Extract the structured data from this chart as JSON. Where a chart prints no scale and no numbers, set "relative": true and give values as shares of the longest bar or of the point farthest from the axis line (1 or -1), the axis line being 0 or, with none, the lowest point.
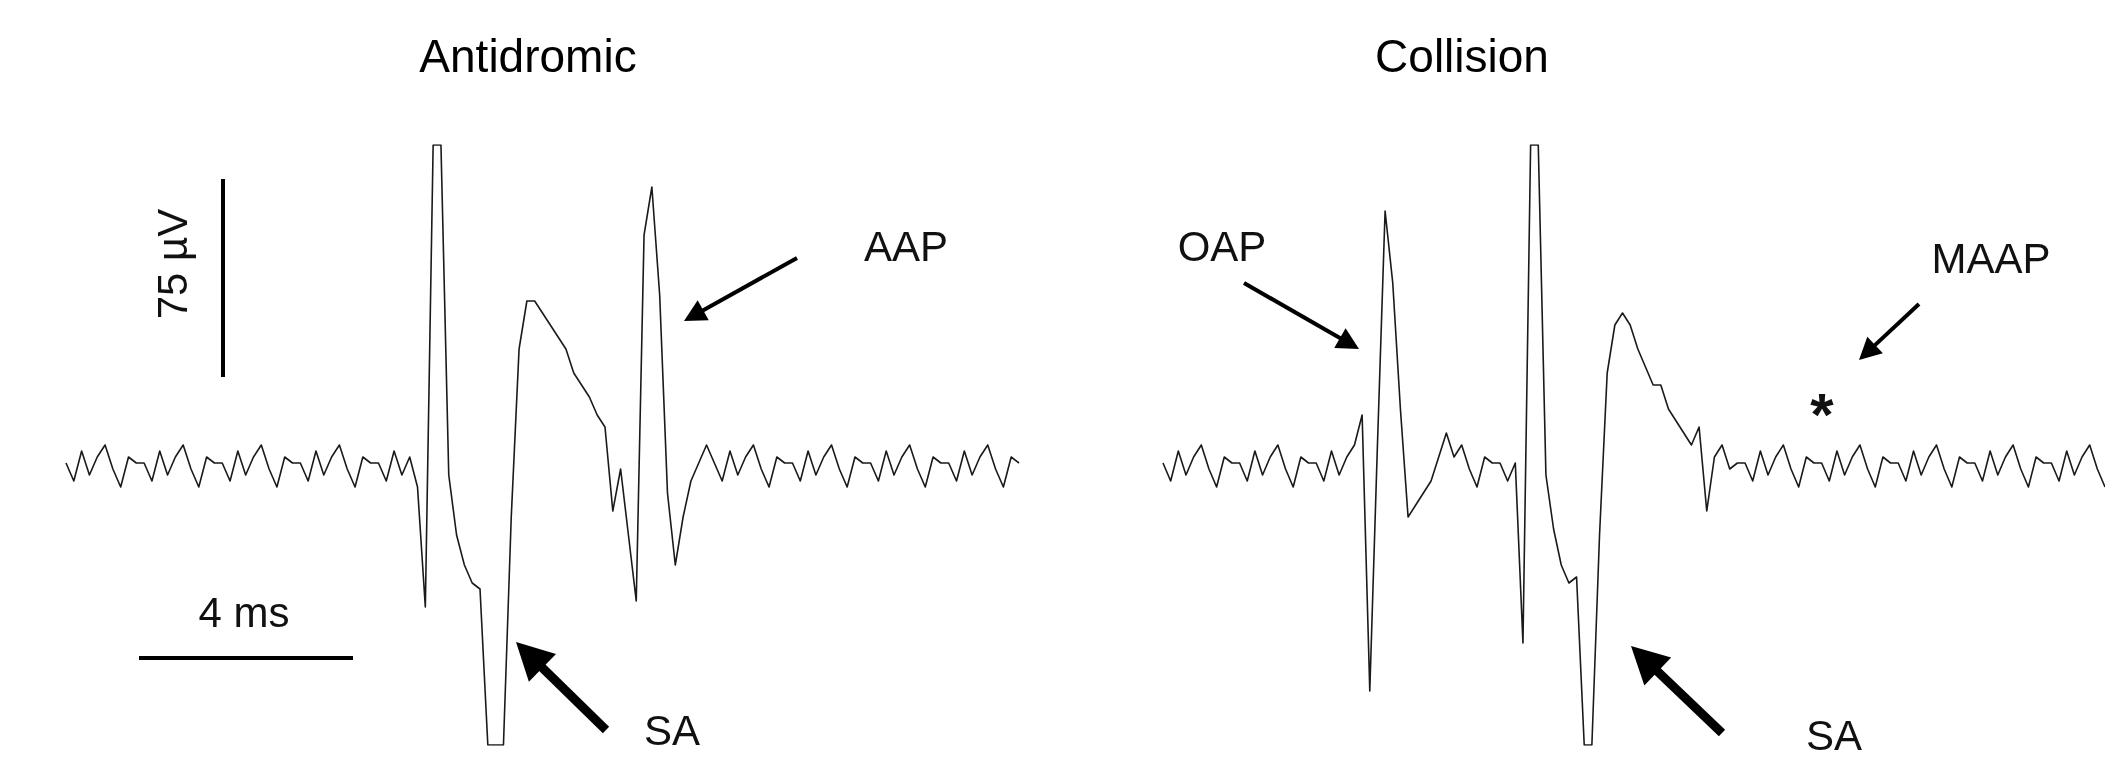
{
  "chart_data": [
    {
      "type": "line",
      "title": "Antidromic",
      "relative": true,
      "annotations": [
        "75 µV",
        "4 ms",
        "AAP",
        "SA"
      ],
      "categories": [
        null,
        null,
        null,
        null,
        null,
        null,
        null,
        null,
        null,
        null,
        null,
        null,
        null,
        null,
        null,
        null,
        null,
        null,
        null,
        null,
        null,
        null,
        null,
        null,
        null,
        null,
        null,
        null,
        null,
        null,
        null,
        null,
        null,
        null,
        null,
        null,
        null,
        null,
        null,
        null,
        null,
        null,
        null,
        null,
        null,
        null,
        null,
        null,
        null,
        null,
        null,
        null,
        null,
        null,
        null,
        null,
        null,
        null,
        null,
        null,
        null,
        null,
        null,
        null,
        null,
        null,
        null,
        null,
        null,
        null,
        null,
        null,
        null,
        null,
        null,
        null,
        null,
        null,
        null,
        null,
        null,
        null,
        null,
        null,
        null,
        null,
        null,
        null,
        null,
        null,
        null,
        null,
        null,
        null,
        null,
        null,
        null,
        null,
        null,
        null,
        null,
        null,
        null,
        null,
        null,
        null,
        null,
        null,
        null,
        null,
        null,
        null,
        null,
        null,
        null,
        null,
        null,
        null,
        null,
        null,
        null,
        null,
        null
      ],
      "series": [
        {
          "color": "#1a1a1a",
          "values": [
            0.47,
            0.44,
            0.49,
            0.45,
            0.48,
            0.5,
            0.46,
            0.43,
            0.48,
            0.47,
            0.47,
            0.44,
            0.49,
            0.45,
            0.48,
            0.5,
            0.46,
            0.43,
            0.48,
            0.47,
            0.47,
            0.44,
            0.49,
            0.45,
            0.48,
            0.5,
            0.46,
            0.43,
            0.48,
            0.47,
            0.47,
            0.44,
            0.49,
            0.45,
            0.48,
            0.5,
            0.46,
            0.43,
            0.48,
            0.47,
            0.47,
            0.44,
            0.49,
            0.45,
            0.48,
            0.43,
            0.23,
            1,
            1,
            0.45,
            0.35,
            0.3,
            0.27,
            0.26,
            0,
            0,
            0,
            0.38,
            0.66,
            0.74,
            0.74,
            0.72,
            0.7,
            0.68,
            0.66,
            0.62,
            0.6,
            0.58,
            0.55,
            0.53,
            0.39,
            0.46,
            0.35,
            0.24,
            0.85,
            0.93,
            0.75,
            0.42,
            0.3,
            0.38,
            0.44,
            0.47,
            0.5,
            0.47,
            0.44,
            0.49,
            0.45,
            0.48,
            0.5,
            0.46,
            0.43,
            0.48,
            0.47,
            0.47,
            0.44,
            0.49,
            0.45,
            0.48,
            0.5,
            0.46,
            0.43,
            0.48,
            0.47,
            0.47,
            0.44,
            0.49,
            0.45,
            0.48,
            0.5,
            0.46,
            0.43,
            0.48,
            0.47,
            0.47,
            0.44,
            0.49,
            0.45,
            0.48,
            0.5,
            0.46,
            0.43,
            0.48,
            0.47
          ]
        }
      ]
    },
    {
      "type": "line",
      "title": "Collision",
      "relative": true,
      "annotations": [
        "OAP",
        "MAAP",
        "*",
        "SA"
      ],
      "categories": [
        null,
        null,
        null,
        null,
        null,
        null,
        null,
        null,
        null,
        null,
        null,
        null,
        null,
        null,
        null,
        null,
        null,
        null,
        null,
        null,
        null,
        null,
        null,
        null,
        null,
        null,
        null,
        null,
        null,
        null,
        null,
        null,
        null,
        null,
        null,
        null,
        null,
        null,
        null,
        null,
        null,
        null,
        null,
        null,
        null,
        null,
        null,
        null,
        null,
        null,
        null,
        null,
        null,
        null,
        null,
        null,
        null,
        null,
        null,
        null,
        null,
        null,
        null,
        null,
        null,
        null,
        null,
        null,
        null,
        null,
        null,
        null,
        null,
        null,
        null,
        null,
        null,
        null,
        null,
        null,
        null,
        null,
        null,
        null,
        null,
        null,
        null,
        null,
        null,
        null,
        null,
        null,
        null,
        null,
        null,
        null,
        null,
        null,
        null,
        null,
        null,
        null,
        null,
        null,
        null,
        null,
        null,
        null,
        null,
        null,
        null,
        null,
        null,
        null,
        null,
        null,
        null,
        null,
        null,
        null,
        null,
        null,
        null,
        null
      ],
      "series": [
        {
          "color": "#1a1a1a",
          "values": [
            0.47,
            0.44,
            0.49,
            0.45,
            0.48,
            0.5,
            0.46,
            0.43,
            0.48,
            0.47,
            0.47,
            0.44,
            0.49,
            0.45,
            0.48,
            0.5,
            0.46,
            0.43,
            0.48,
            0.47,
            0.47,
            0.44,
            0.49,
            0.45,
            0.48,
            0.5,
            0.55,
            0.09,
            0.5,
            0.89,
            0.77,
            0.56,
            0.38,
            0.4,
            0.42,
            0.44,
            0.48,
            0.52,
            0.48,
            0.5,
            0.46,
            0.43,
            0.48,
            0.47,
            0.47,
            0.44,
            0.47,
            0.17,
            1,
            1,
            0.45,
            0.36,
            0.3,
            0.27,
            0.28,
            0,
            0,
            0.35,
            0.62,
            0.7,
            0.72,
            0.7,
            0.66,
            0.63,
            0.6,
            0.6,
            0.56,
            0.54,
            0.52,
            0.5,
            0.53,
            0.39,
            0.48,
            0.5,
            0.46,
            0.47,
            0.47,
            0.44,
            0.49,
            0.45,
            0.48,
            0.5,
            0.46,
            0.43,
            0.48,
            0.47,
            0.47,
            0.44,
            0.49,
            0.45,
            0.48,
            0.5,
            0.46,
            0.43,
            0.48,
            0.47,
            0.47,
            0.44,
            0.49,
            0.45,
            0.48,
            0.5,
            0.46,
            0.43,
            0.48,
            0.47,
            0.47,
            0.44,
            0.49,
            0.45,
            0.48,
            0.5,
            0.46,
            0.43,
            0.48,
            0.47,
            0.47,
            0.44,
            0.49,
            0.45,
            0.48,
            0.5,
            0.46,
            0.43
          ]
        }
      ]
    }
  ]
}
